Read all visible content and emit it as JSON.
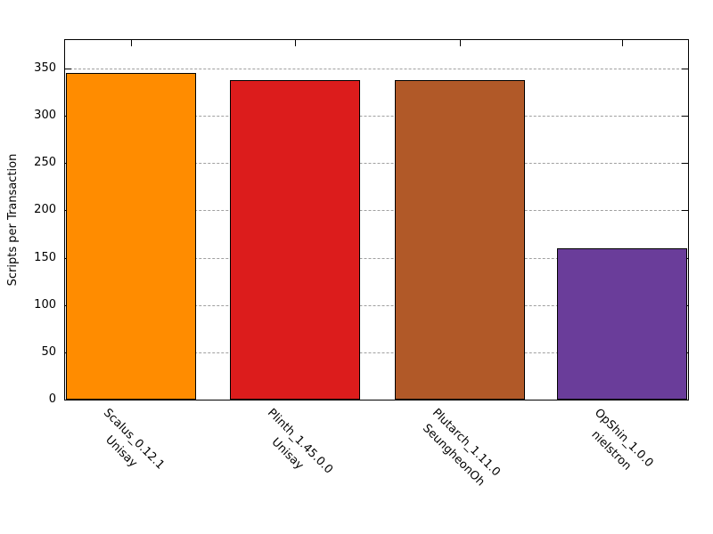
{
  "chart_data": {
    "type": "bar",
    "title": "",
    "xlabel": "",
    "ylabel": "Scripts per Transaction",
    "ylim": [
      0,
      380
    ],
    "yticks": [
      0,
      50,
      100,
      150,
      200,
      250,
      300,
      350
    ],
    "grid": "horizontal dashed gray, ticks mirrored on top/right",
    "legend": "none",
    "categories": [
      "Scalus_0.12.1",
      "Plinth_1.45.0.0",
      "Plutarch_1.11.0",
      "OpShin_1.0.0"
    ],
    "category_sublabels": [
      "Unisay",
      "Unisay",
      "SeungheonOh",
      "nielstron"
    ],
    "values": [
      345,
      338,
      338,
      160
    ],
    "colors": [
      "#FF8C00",
      "#DC1C1C",
      "#B15928",
      "#6A3D9A"
    ],
    "grid_color": "#A0A0A0",
    "axis_color": "#000000",
    "background_color": "#FFFFFF"
  }
}
